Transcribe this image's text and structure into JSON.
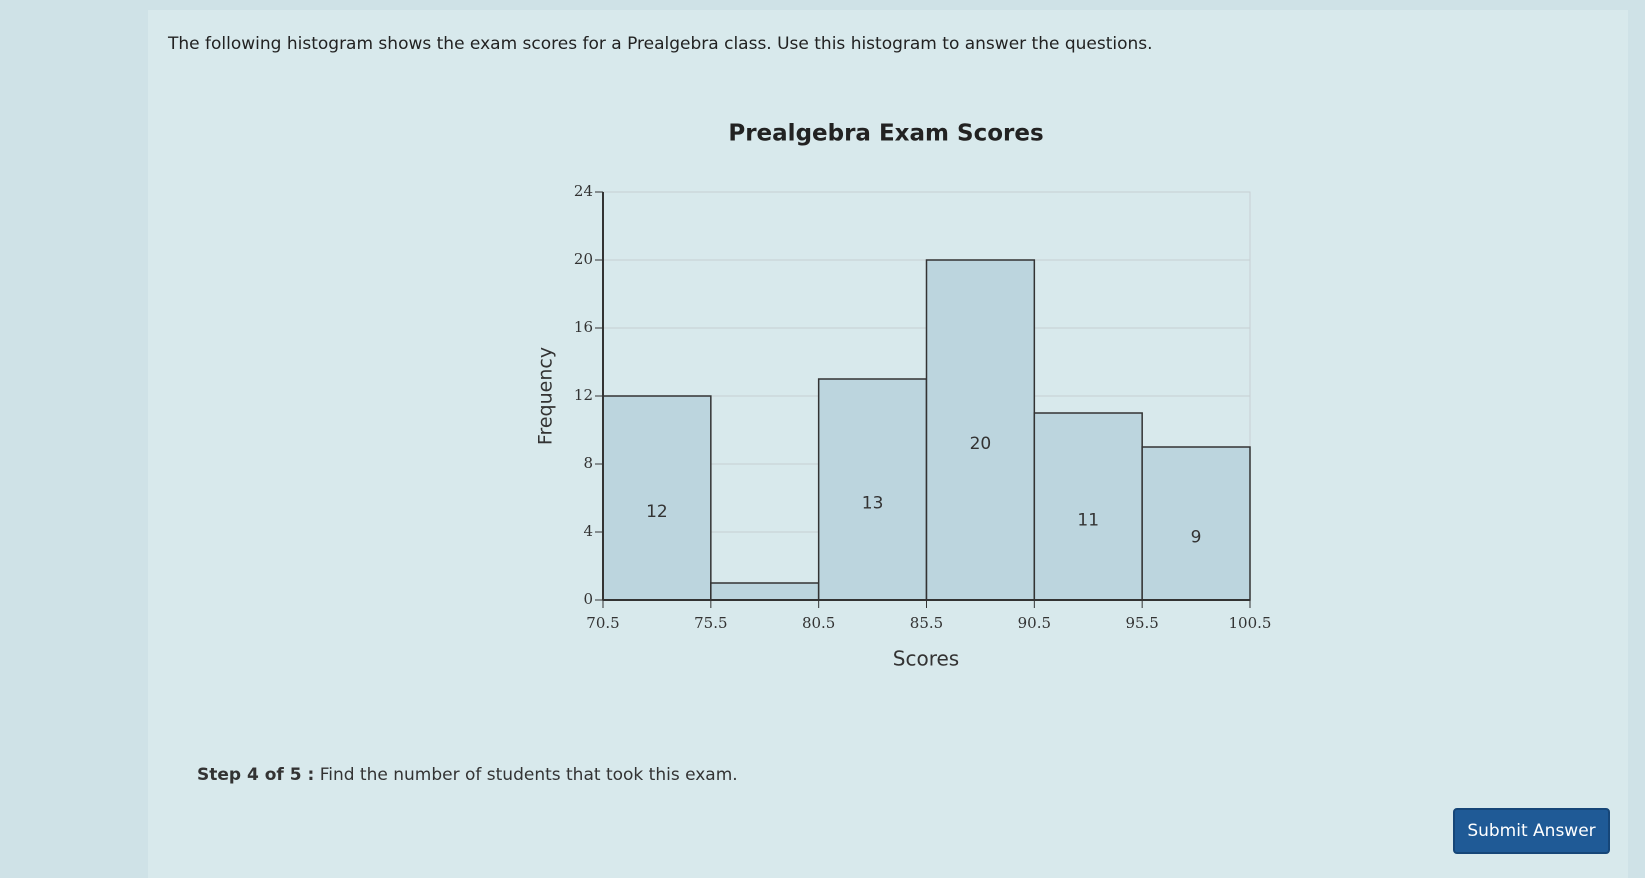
{
  "prompt": "The following histogram shows the exam scores for a Prealgebra class. Use this histogram to answer the questions.",
  "chart_data": {
    "type": "histogram",
    "title": "Prealgebra Exam Scores",
    "x_label": "Scores",
    "y_label": "Frequency",
    "bins": [
      70.5,
      75.5,
      80.5,
      85.5,
      90.5,
      95.5,
      100.5
    ],
    "values": [
      12,
      1,
      13,
      20,
      11,
      9
    ],
    "value_labels": [
      "12",
      null,
      "13",
      "20",
      "11",
      "9"
    ],
    "color": "#bcd5de",
    "xlim": [
      70.5,
      100.5
    ],
    "xticks": [
      70.5,
      75.5,
      80.5,
      85.5,
      90.5,
      95.5,
      100.5
    ],
    "ylim": [
      0,
      24
    ],
    "yticks": [
      0,
      4,
      8,
      12,
      16,
      20,
      24
    ],
    "grid": true
  },
  "step": {
    "label": "Step 4 of 5 :",
    "text": "Find the number of students that took this exam."
  },
  "button": "Submit Answer"
}
